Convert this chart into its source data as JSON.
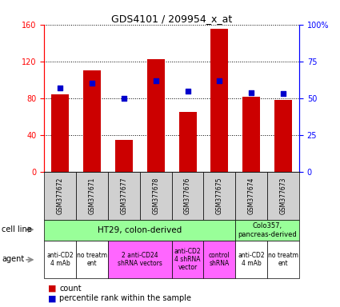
{
  "title": "GDS4101 / 209954_x_at",
  "samples": [
    "GSM377672",
    "GSM377671",
    "GSM377677",
    "GSM377678",
    "GSM377676",
    "GSM377675",
    "GSM377674",
    "GSM377673"
  ],
  "counts": [
    84,
    110,
    35,
    122,
    65,
    155,
    82,
    78
  ],
  "percentiles": [
    57,
    60,
    50,
    62,
    55,
    62,
    54,
    53
  ],
  "ylim_left": [
    0,
    160
  ],
  "ylim_right": [
    0,
    100
  ],
  "yticks_left": [
    0,
    40,
    80,
    120,
    160
  ],
  "yticks_right": [
    0,
    25,
    50,
    75,
    100
  ],
  "ytick_labels_right": [
    "0",
    "25",
    "50",
    "75",
    "100%"
  ],
  "bar_color": "#cc0000",
  "dot_color": "#0000cc",
  "cell_line_ht29": "HT29, colon-derived",
  "cell_line_colo": "Colo357,\npancreas-derived",
  "cell_line_ht29_color": "#99ff99",
  "cell_line_colo_color": "#99ff99",
  "agent_info": [
    [
      0,
      1,
      "#ffffff",
      "anti-CD2\n4 mAb"
    ],
    [
      1,
      2,
      "#ffffff",
      "no treatm\nent"
    ],
    [
      2,
      4,
      "#ff66ff",
      "2 anti-CD24\nshRNA vectors"
    ],
    [
      4,
      5,
      "#ff66ff",
      "anti-CD2\n4 shRNA\nvector"
    ],
    [
      5,
      6,
      "#ff66ff",
      "control\nshRNA"
    ],
    [
      6,
      7,
      "#ffffff",
      "anti-CD2\n4 mAb"
    ],
    [
      7,
      8,
      "#ffffff",
      "no treatm\nent"
    ]
  ],
  "label_count": "count",
  "label_percentile": "percentile rank within the sample",
  "sample_bg": "#d0d0d0"
}
